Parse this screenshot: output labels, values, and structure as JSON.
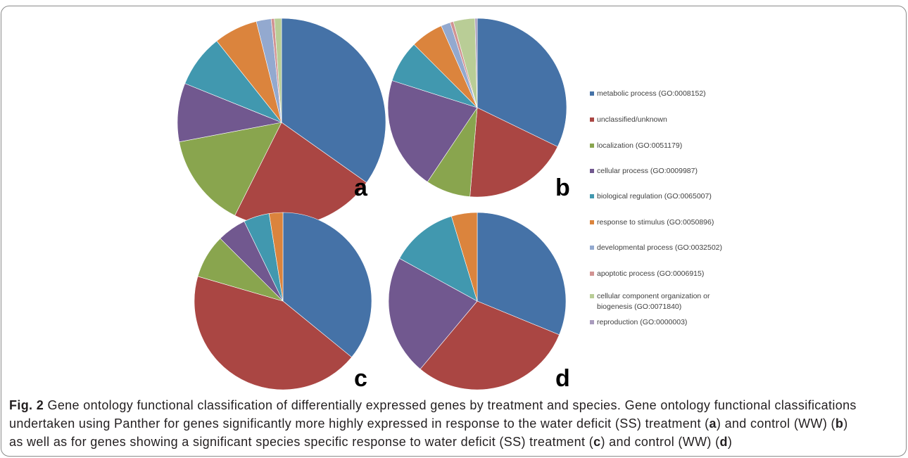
{
  "chart_data": {
    "type": "pie",
    "legend_position": "right",
    "categories": [
      "metabolic process (GO:0008152)",
      "unclassified/unknown",
      "localization (GO:0051179)",
      "cellular process (GO:0009987)",
      "biological regulation (GO:0065007)",
      "response to stimulus (GO:0050896)",
      "developmental process (GO:0032502)",
      "apoptotic process (GO:0006915)",
      "cellular component organization or biogenesis (GO:0071840)",
      "reproduction (GO:0000003)"
    ],
    "colors": [
      "#4572A7",
      "#AA4643",
      "#89A54E",
      "#71588F",
      "#4198AF",
      "#DB843D",
      "#93A9CF",
      "#D19392",
      "#B9CD96",
      "#A99BBD"
    ],
    "charts": [
      {
        "panel": "a",
        "values": [
          34.8,
          22.6,
          14.6,
          9.1,
          8.2,
          6.8,
          2.3,
          0.5,
          1.1,
          0
        ]
      },
      {
        "panel": "b",
        "values": [
          32.2,
          19.1,
          8.1,
          20.5,
          7.6,
          5.9,
          1.7,
          0.6,
          3.9,
          0.4
        ]
      },
      {
        "panel": "c",
        "values": [
          35.9,
          43.6,
          8.0,
          5.3,
          4.7,
          2.5,
          0,
          0,
          0,
          0
        ]
      },
      {
        "panel": "d",
        "values": [
          31.2,
          29.9,
          0,
          21.9,
          12.3,
          4.7,
          0,
          0,
          0,
          0
        ]
      }
    ]
  },
  "caption": {
    "label": "Fig. 2",
    "line1": "Gene ontology functional classification of differentially expressed genes by treatment and species. Gene ontology functional classifications",
    "line2": [
      "undertaken using Panther for genes significantly more highly expressed in response to the water deficit (SS) treatment (",
      "a",
      ") and control (WW) (",
      "b",
      ")"
    ],
    "line3": [
      "as well as for genes showing a significant species specific response to water deficit (SS) treatment (",
      "c",
      ") and control (WW) (",
      "d",
      ")"
    ]
  }
}
